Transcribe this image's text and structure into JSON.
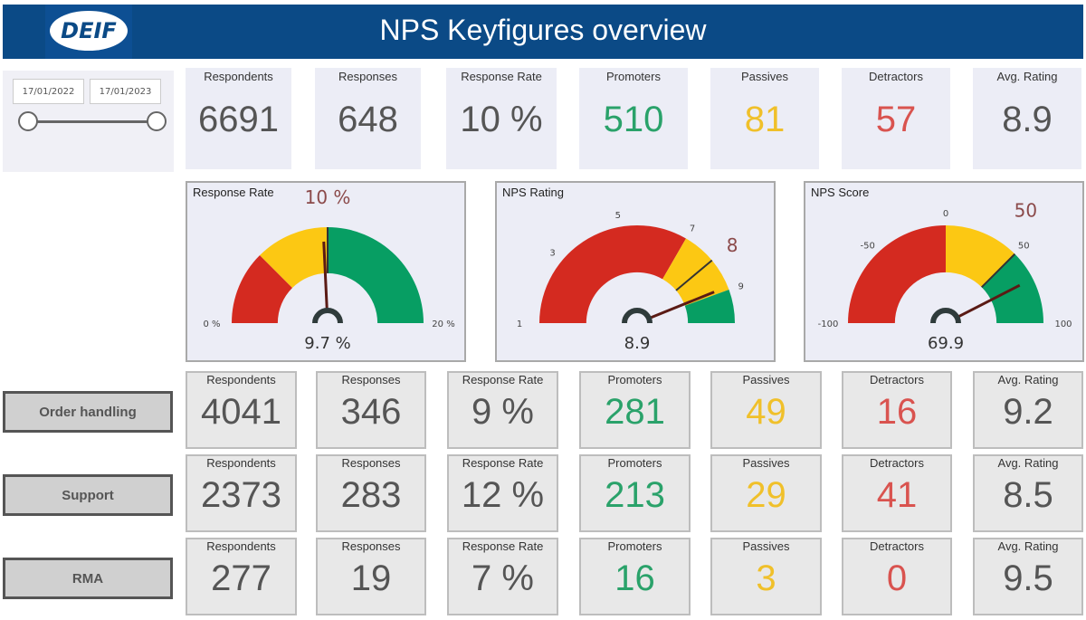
{
  "header": {
    "logo": "DEIF",
    "title": "NPS Keyfigures overview"
  },
  "slicer": {
    "start": "17/01/2022",
    "end": "17/01/2023"
  },
  "kpis": [
    {
      "label": "Respondents",
      "value": "6691",
      "tone": ""
    },
    {
      "label": "Responses",
      "value": "648",
      "tone": ""
    },
    {
      "label": "Response Rate",
      "value": "10 %",
      "tone": ""
    },
    {
      "label": "Promoters",
      "value": "510",
      "tone": "g"
    },
    {
      "label": "Passives",
      "value": "81",
      "tone": "y"
    },
    {
      "label": "Detractors",
      "value": "57",
      "tone": "r"
    },
    {
      "label": "Avg. Rating",
      "value": "8.9",
      "tone": ""
    }
  ],
  "colors": {
    "red": "#d42a20",
    "yellow": "#fcc813",
    "green": "#079e63",
    "needle": "#5a1a14",
    "target": "#333333"
  },
  "gauges": [
    {
      "title": "Response Rate",
      "min": 0,
      "max": 20,
      "bands": [
        5,
        10,
        20
      ],
      "target": 10,
      "value": 9.7,
      "target_label": "10 %",
      "value_label": "9.7 %",
      "ticks": [
        {
          "v": 0,
          "label": "0 %"
        },
        {
          "v": 20,
          "label": "20 %"
        }
      ]
    },
    {
      "title": "NPS Rating",
      "min": 1,
      "max": 10,
      "bands": [
        7,
        9,
        10
      ],
      "target": 8,
      "value": 8.9,
      "target_label": "8",
      "value_label": "8.9",
      "ticks": [
        {
          "v": 1,
          "label": "1"
        },
        {
          "v": 3,
          "label": "3"
        },
        {
          "v": 5,
          "label": "5"
        },
        {
          "v": 7,
          "label": "7"
        },
        {
          "v": 9,
          "label": "9"
        }
      ]
    },
    {
      "title": "NPS Score",
      "min": -100,
      "max": 100,
      "bands": [
        0,
        50,
        100
      ],
      "target": 50,
      "value": 69.9,
      "target_label": "50",
      "value_label": "69.9",
      "ticks": [
        {
          "v": -100,
          "label": "-100"
        },
        {
          "v": -50,
          "label": "-50"
        },
        {
          "v": 0,
          "label": "0"
        },
        {
          "v": 50,
          "label": "50"
        },
        {
          "v": 100,
          "label": "100"
        }
      ]
    }
  ],
  "segments": [
    {
      "name": "Order handling",
      "values": [
        "4041",
        "346",
        "9 %",
        "281",
        "49",
        "16",
        "9.2"
      ]
    },
    {
      "name": "Support",
      "values": [
        "2373",
        "283",
        "12 %",
        "213",
        "29",
        "41",
        "8.5"
      ]
    },
    {
      "name": "RMA",
      "values": [
        "277",
        "19",
        "7 %",
        "16",
        "3",
        "0",
        "9.5"
      ]
    }
  ]
}
